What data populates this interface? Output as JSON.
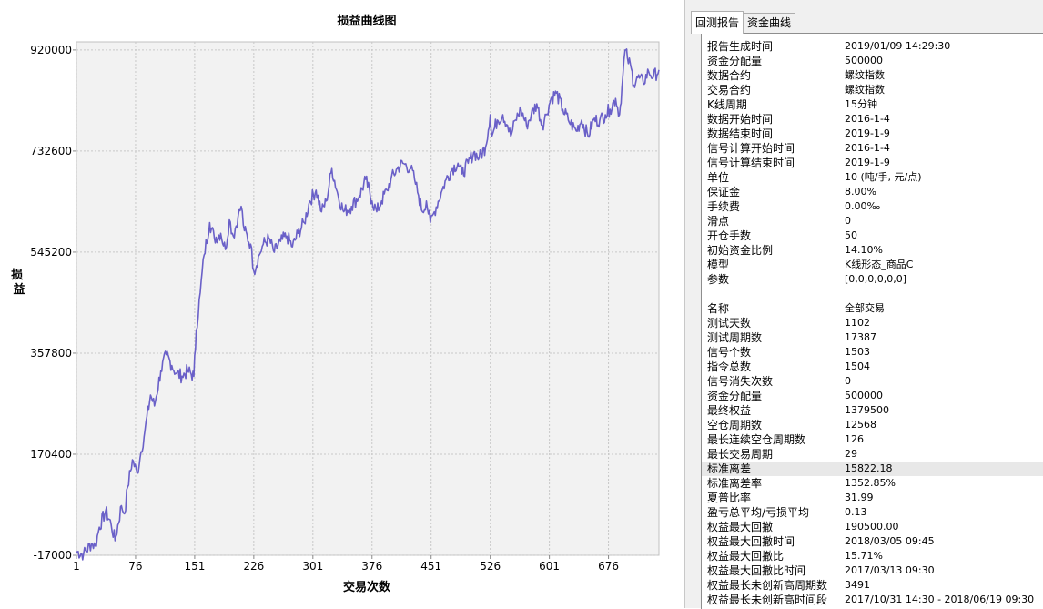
{
  "chart_data": {
    "type": "line",
    "title": "损益曲线图",
    "xlabel": "交易次数",
    "ylabel": "损益",
    "xlim": [
      1,
      740
    ],
    "ylim": [
      -17000,
      935000
    ],
    "x_ticks": [
      1,
      76,
      151,
      226,
      301,
      376,
      451,
      526,
      601,
      676
    ],
    "y_ticks": [
      -17000,
      170400,
      357800,
      545200,
      732600,
      920000
    ],
    "x_tick_labels": [
      "1",
      "76",
      "151",
      "226",
      "301",
      "376",
      "451",
      "526",
      "601",
      "676"
    ],
    "y_tick_labels": [
      "-17000",
      "170400",
      "357800",
      "545200",
      "732600",
      "920000"
    ],
    "line_color": "#6a60c8",
    "grid": true,
    "series": [
      {
        "x": [
          1,
          10,
          20,
          25,
          30,
          38,
          45,
          50,
          58,
          62,
          66,
          72,
          78,
          83,
          88,
          95,
          100,
          108,
          115,
          122,
          128,
          135,
          142,
          150,
          153,
          158,
          163,
          170,
          176,
          184,
          190,
          195,
          200,
          206,
          210,
          214,
          222,
          226,
          233,
          238,
          245,
          252,
          260,
          268,
          275,
          282,
          290,
          297,
          305,
          312,
          318,
          325,
          333,
          340,
          350,
          360,
          368,
          376,
          382,
          388,
          395,
          400,
          408,
          415,
          425,
          430,
          435,
          440,
          445,
          450,
          455,
          465,
          470,
          478,
          485,
          490,
          498,
          505,
          512,
          520,
          526,
          528,
          535,
          542,
          548,
          552,
          558,
          565,
          572,
          578,
          585,
          592,
          597,
          603,
          610,
          618,
          625,
          635,
          642,
          650,
          657,
          665,
          672,
          678,
          685,
          690,
          693,
          697,
          700,
          705,
          708,
          712,
          720,
          727,
          733,
          740
        ],
        "y": [
          -10000,
          -15000,
          5000,
          0,
          35000,
          65000,
          40000,
          10000,
          75000,
          60000,
          110000,
          160000,
          135000,
          175000,
          215000,
          280000,
          260000,
          325000,
          355000,
          335000,
          320000,
          315000,
          325000,
          315000,
          400000,
          470000,
          540000,
          600000,
          570000,
          580000,
          550000,
          605000,
          575000,
          610000,
          630000,
          585000,
          560000,
          510000,
          540000,
          560000,
          570000,
          545000,
          565000,
          575000,
          555000,
          580000,
          600000,
          640000,
          660000,
          620000,
          640000,
          700000,
          650000,
          620000,
          630000,
          650000,
          680000,
          640000,
          620000,
          640000,
          660000,
          680000,
          700000,
          710000,
          700000,
          680000,
          650000,
          620000,
          640000,
          600000,
          620000,
          660000,
          680000,
          700000,
          710000,
          690000,
          710000,
          730000,
          720000,
          740000,
          800000,
          760000,
          790000,
          800000,
          780000,
          760000,
          790000,
          810000,
          780000,
          800000,
          820000,
          780000,
          800000,
          830000,
          840000,
          810000,
          790000,
          770000,
          790000,
          760000,
          790000,
          790000,
          800000,
          810000,
          830000,
          800000,
          850000,
          920000,
          905000,
          885000,
          855000,
          870000,
          860000,
          880000,
          870000,
          883000
        ]
      }
    ]
  },
  "tabs": [
    "回测报告",
    "资金曲线"
  ],
  "report": {
    "rows": [
      {
        "label": "报告生成时间",
        "value": "2019/01/09 14:29:30"
      },
      {
        "label": "资金分配量",
        "value": "500000"
      },
      {
        "label": "数据合约",
        "value": "螺纹指数"
      },
      {
        "label": "交易合约",
        "value": "螺纹指数"
      },
      {
        "label": "K线周期",
        "value": "15分钟"
      },
      {
        "label": "数据开始时间",
        "value": "2016-1-4"
      },
      {
        "label": "数据结束时间",
        "value": "2019-1-9"
      },
      {
        "label": "信号计算开始时间",
        "value": "2016-1-4"
      },
      {
        "label": "信号计算结束时间",
        "value": "2019-1-9"
      },
      {
        "label": "单位",
        "value": "10 (吨/手, 元/点)"
      },
      {
        "label": "保证金",
        "value": "8.00%"
      },
      {
        "label": "手续费",
        "value": "0.00‰"
      },
      {
        "label": "滑点",
        "value": "0"
      },
      {
        "label": "开仓手数",
        "value": "50"
      },
      {
        "label": "初始资金比例",
        "value": "14.10%"
      },
      {
        "label": "模型",
        "value": "K线形态_商品C"
      },
      {
        "label": "参数",
        "value": "[0,0,0,0,0,0]"
      },
      {
        "label": "",
        "value": ""
      },
      {
        "label": "名称",
        "value": "全部交易"
      },
      {
        "label": "测试天数",
        "value": "1102"
      },
      {
        "label": "测试周期数",
        "value": "17387"
      },
      {
        "label": "信号个数",
        "value": "1503"
      },
      {
        "label": "指令总数",
        "value": "1504"
      },
      {
        "label": "信号消失次数",
        "value": "0"
      },
      {
        "label": "资金分配量",
        "value": "500000"
      },
      {
        "label": "最终权益",
        "value": "1379500"
      },
      {
        "label": "空仓周期数",
        "value": "12568"
      },
      {
        "label": "最长连续空仓周期数",
        "value": "126"
      },
      {
        "label": "最长交易周期",
        "value": "29"
      },
      {
        "label": "标准离差",
        "value": "15822.18"
      },
      {
        "label": "标准离差率",
        "value": "1352.85%"
      },
      {
        "label": "夏普比率",
        "value": "31.99"
      },
      {
        "label": "盈亏总平均/亏损平均",
        "value": "0.13"
      },
      {
        "label": "权益最大回撤",
        "value": "190500.00"
      },
      {
        "label": "权益最大回撤时间",
        "value": "2018/03/05 09:45"
      },
      {
        "label": "权益最大回撤比",
        "value": "15.71%"
      },
      {
        "label": "权益最大回撤比时间",
        "value": "2017/03/13 09:30"
      },
      {
        "label": "权益最长未创新高周期数",
        "value": "3491"
      },
      {
        "label": "权益最长未创新高时间段",
        "value": "2017/10/31 14:30 - 2018/06/19 09:30"
      }
    ],
    "highlighted_row": 29
  }
}
